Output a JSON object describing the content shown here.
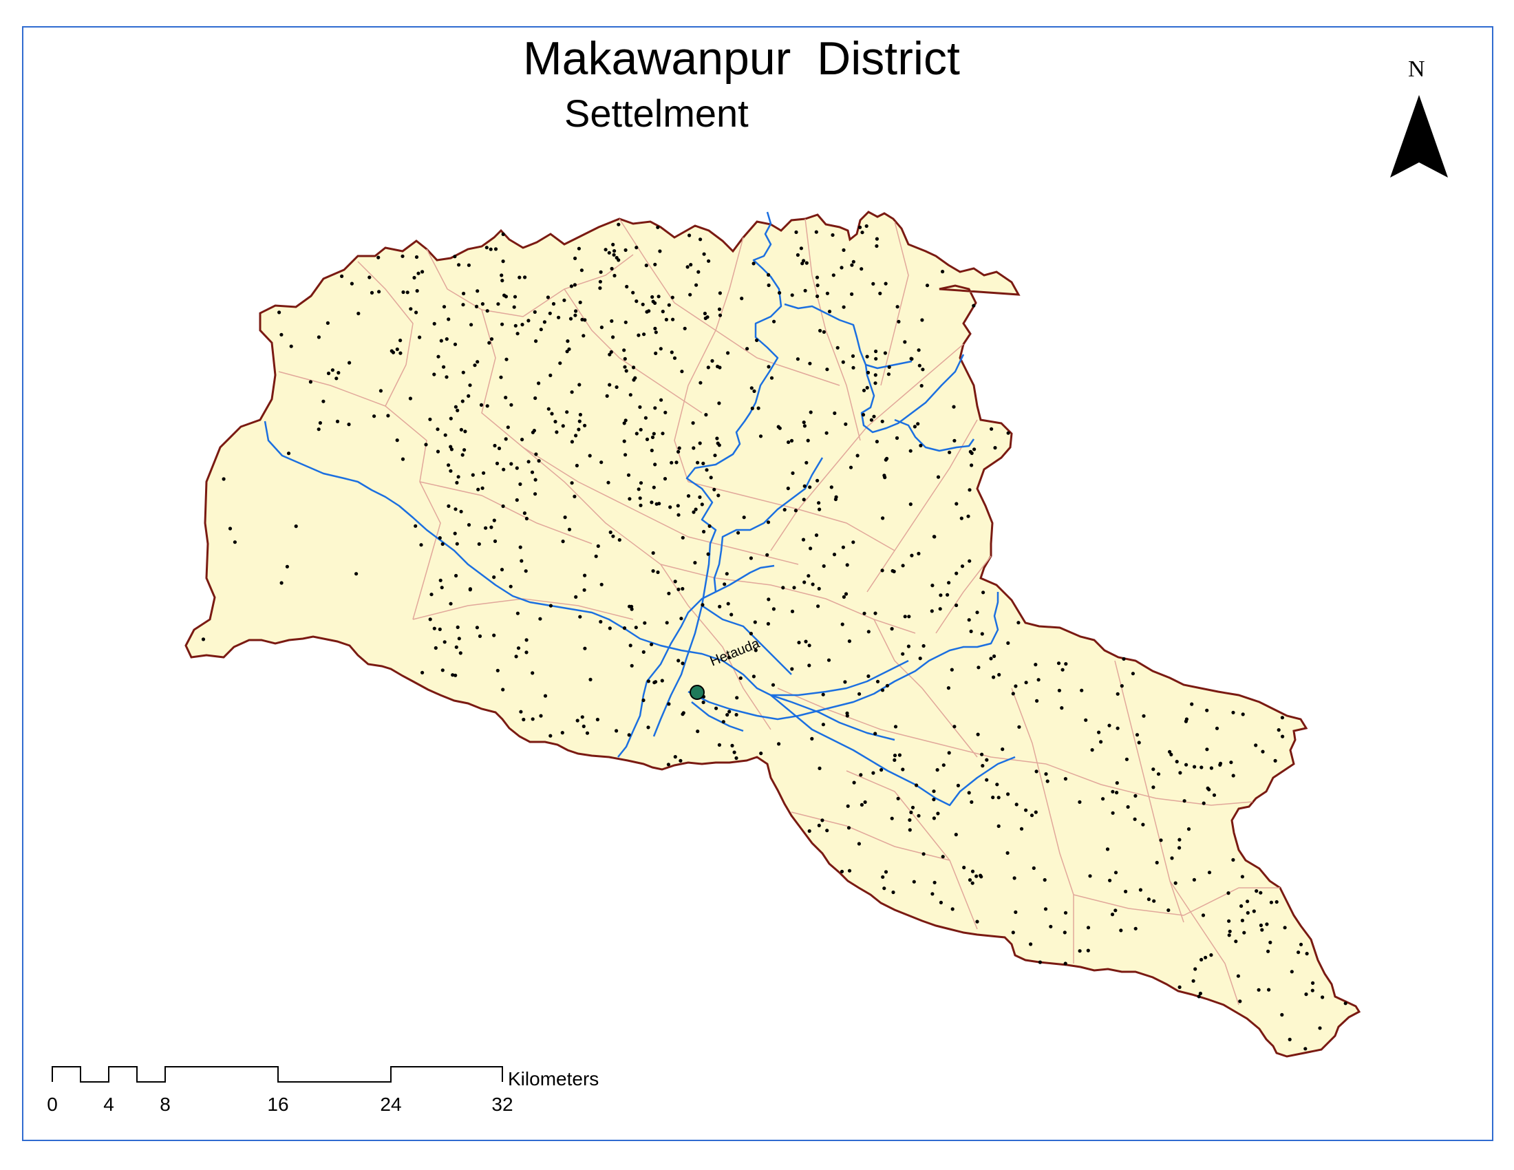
{
  "map": {
    "title": "Makawanpur  District",
    "subtitle": "Settelment",
    "north_label": "N",
    "place_label": "Hetauda",
    "scale_unit": "Kilometers",
    "scale_ticks": [
      "0",
      "4",
      "8",
      "16",
      "24",
      "32"
    ]
  },
  "colors": {
    "land_fill": "#fdf8cf",
    "boundary": "#7a1a12",
    "rivers": "#1b6fe0",
    "internal_boundaries": "#e1a79a",
    "settlement_points": "#000000",
    "headquarters_point": "#1f7a5a",
    "frame": "#2f6bd0"
  },
  "legend_items": [
    "settlement-point",
    "river",
    "village-boundary",
    "district-headquarters"
  ]
}
